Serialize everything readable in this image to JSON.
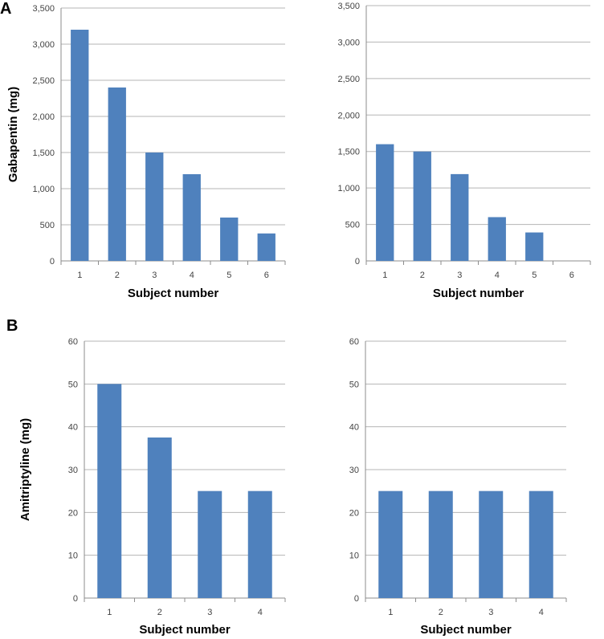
{
  "panel_labels": {
    "a": "A",
    "b": "B"
  },
  "colors": {
    "bar": "#4F81BD",
    "grid": "#B5B5B5",
    "axis": "#8C8C8C"
  },
  "chart_data": [
    {
      "type": "bar",
      "panel": "A",
      "title": "",
      "xlabel": "Subject number",
      "ylabel": "Gabapentin (mg)",
      "categories": [
        "1",
        "2",
        "3",
        "4",
        "5",
        "6"
      ],
      "values": [
        3200,
        2400,
        1500,
        1200,
        600,
        380
      ],
      "ylim": [
        0,
        3500
      ],
      "yticks": [
        "0",
        "500",
        "1,000",
        "1,500",
        "2,000",
        "2,500",
        "3,000",
        "3,500"
      ],
      "grid": true
    },
    {
      "type": "bar",
      "panel": "A",
      "title": "",
      "xlabel": "Subject number",
      "ylabel": "",
      "categories": [
        "1",
        "2",
        "3",
        "4",
        "5",
        "6"
      ],
      "values": [
        1600,
        1500,
        1190,
        600,
        390,
        0
      ],
      "ylim": [
        0,
        3500
      ],
      "yticks": [
        "0",
        "500",
        "1,000",
        "1,500",
        "2,000",
        "2,500",
        "3,000",
        "3,500"
      ],
      "grid": true
    },
    {
      "type": "bar",
      "panel": "B",
      "title": "",
      "xlabel": "Subject number",
      "ylabel": "Amitriptyline (mg)",
      "categories": [
        "1",
        "2",
        "3",
        "4"
      ],
      "values": [
        50,
        37.5,
        25,
        25
      ],
      "ylim": [
        0,
        60
      ],
      "yticks": [
        "0",
        "10",
        "20",
        "30",
        "40",
        "50",
        "60"
      ],
      "grid": true
    },
    {
      "type": "bar",
      "panel": "B",
      "title": "",
      "xlabel": "Subject number",
      "ylabel": "",
      "categories": [
        "1",
        "2",
        "3",
        "4"
      ],
      "values": [
        25,
        25,
        25,
        25
      ],
      "ylim": [
        0,
        60
      ],
      "yticks": [
        "0",
        "10",
        "20",
        "30",
        "40",
        "50",
        "60"
      ],
      "grid": true
    }
  ]
}
